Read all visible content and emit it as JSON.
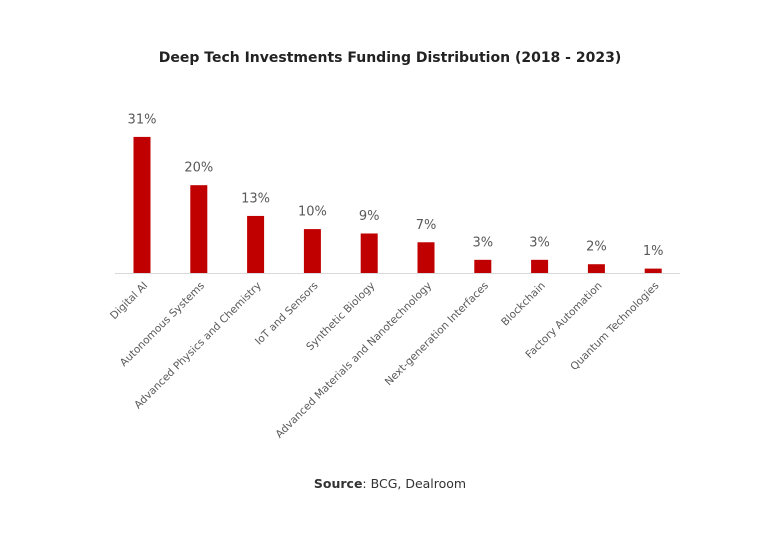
{
  "chart_data": {
    "type": "bar",
    "title": "Deep Tech Investments Funding Distribution (2018 - 2023)",
    "categories": [
      "Digital AI",
      "Autonomous Systems",
      "Advanced Physics and Chemistry",
      "IoT and Sensors",
      "Synthetic Biology",
      "Advanced Materials and Nanotechnology",
      "Next-generation Interfaces",
      "Blockchain",
      "Factory Automation",
      "Quantum Technologies"
    ],
    "values": [
      31,
      20,
      13,
      10,
      9,
      7,
      3,
      3,
      2,
      1
    ],
    "value_labels": [
      "31%",
      "20%",
      "13%",
      "10%",
      "9%",
      "7%",
      "3%",
      "3%",
      "2%",
      "1%"
    ],
    "color": "#c00000",
    "source_label": "Source",
    "source_text": ": BCG, Dealroom"
  }
}
